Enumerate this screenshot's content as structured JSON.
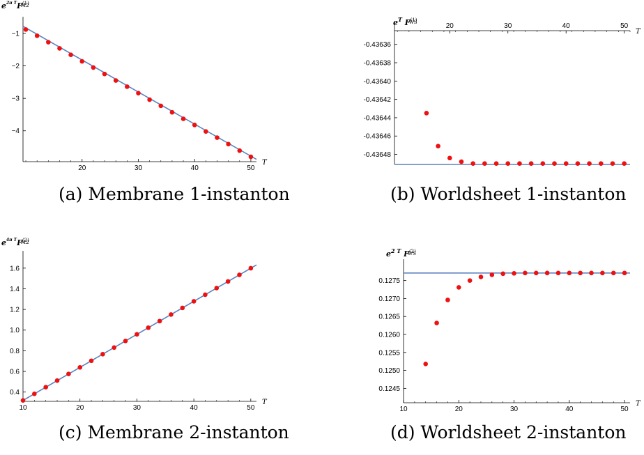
{
  "chart_data": [
    {
      "id": "a",
      "type": "scatter",
      "caption": "(a) Membrane 1-instanton",
      "ylabel": "e^{(2π/g_s)...} F_M2^(1)",
      "xlabel": "T",
      "xlim": [
        9.5,
        51
      ],
      "ylim": [
        -4.95,
        -0.7
      ],
      "x_ticks": [
        20,
        30,
        40,
        50
      ],
      "y_ticks": [
        -1,
        -2,
        -3,
        -4
      ],
      "x_axis_at_y": -4.95,
      "y_axis_at_x": 9.5,
      "points": {
        "x": [
          10,
          12,
          14,
          16,
          18,
          20,
          22,
          24,
          26,
          28,
          30,
          32,
          34,
          36,
          38,
          40,
          42,
          44,
          46,
          48,
          50
        ],
        "y": [
          -0.88,
          -1.07,
          -1.27,
          -1.46,
          -1.66,
          -1.86,
          -2.05,
          -2.25,
          -2.45,
          -2.64,
          -2.84,
          -3.04,
          -3.23,
          -3.43,
          -3.63,
          -3.82,
          -4.02,
          -4.21,
          -4.41,
          -4.61,
          -4.8
        ]
      },
      "fit_line": {
        "x": [
          9.5,
          51
        ],
        "y": [
          -0.78,
          -4.88
        ]
      },
      "colors": {
        "points": "#ee1111",
        "line": "#5b82c0"
      }
    },
    {
      "id": "b",
      "type": "scatter",
      "caption": "(b) Worldsheet 1-instanton",
      "ylabel": "e^T F_WS^(1)",
      "xlabel": "T",
      "xlim": [
        10.5,
        51
      ],
      "ylim": [
        -0.436491,
        -0.436345
      ],
      "x_ticks": [
        20,
        30,
        40,
        50
      ],
      "y_ticks": [
        -0.43636,
        -0.43638,
        -0.4364,
        -0.43642,
        -0.43644,
        -0.43646,
        -0.43648
      ],
      "y_tick_labels": [
        "-0.43636",
        "-0.43638",
        "-0.43640",
        "-0.43642",
        "-0.43644",
        "-0.43646",
        "-0.43648"
      ],
      "x_axis_at_y": -0.436345,
      "x_axis_position": "top",
      "y_axis_at_x": 10.5,
      "points": {
        "x": [
          16,
          18,
          20,
          22,
          24,
          26,
          28,
          30,
          32,
          34,
          36,
          38,
          40,
          42,
          44,
          46,
          48,
          50
        ],
        "y": [
          -0.436435,
          -0.436471,
          -0.436484,
          -0.436488,
          -0.43649,
          -0.43649,
          -0.43649,
          -0.43649,
          -0.43649,
          -0.43649,
          -0.43649,
          -0.43649,
          -0.43649,
          -0.43649,
          -0.43649,
          -0.43649,
          -0.43649,
          -0.43649
        ]
      },
      "fit_line": {
        "x": [
          10.5,
          51
        ],
        "y": [
          -0.436491,
          -0.436491
        ]
      },
      "colors": {
        "points": "#ee1111",
        "line": "#5b82c0"
      }
    },
    {
      "id": "c",
      "type": "scatter",
      "caption": "(c) Membrane 2-instanton",
      "ylabel": "e^{(4πT/g_s)} F_M2^(2)",
      "xlabel": "T",
      "xlim": [
        10,
        51
      ],
      "ylim": [
        0.31,
        1.7
      ],
      "x_ticks": [
        10,
        20,
        30,
        40,
        50
      ],
      "y_ticks": [
        0.4,
        0.6,
        0.8,
        1.0,
        1.2,
        1.4,
        1.6
      ],
      "y_tick_labels": [
        "0.4",
        "0.6",
        "0.8",
        "1.0",
        "1.2",
        "1.4",
        "1.6"
      ],
      "x_axis_at_y": 0.31,
      "y_axis_at_x": 10,
      "points": {
        "x": [
          10,
          12,
          14,
          16,
          18,
          20,
          22,
          24,
          26,
          28,
          30,
          32,
          34,
          36,
          38,
          40,
          42,
          44,
          46,
          48,
          50
        ],
        "y": [
          0.319,
          0.383,
          0.447,
          0.511,
          0.575,
          0.639,
          0.703,
          0.767,
          0.831,
          0.895,
          0.959,
          1.023,
          1.087,
          1.151,
          1.215,
          1.279,
          1.343,
          1.407,
          1.471,
          1.535,
          1.599
        ]
      },
      "fit_line": {
        "x": [
          10,
          51
        ],
        "y": [
          0.319,
          1.631
        ]
      },
      "colors": {
        "points": "#ee1111",
        "line": "#5b82c0"
      }
    },
    {
      "id": "d",
      "type": "scatter",
      "caption": "(d) Worldsheet 2-instanton",
      "ylabel": "e^{2T} F_WS^(2)",
      "xlabel": "T",
      "xlim": [
        10,
        51
      ],
      "ylim": [
        0.1241,
        0.1279
      ],
      "x_ticks": [
        10,
        20,
        30,
        40,
        50
      ],
      "y_ticks": [
        0.1245,
        0.125,
        0.1255,
        0.126,
        0.1265,
        0.127,
        0.1275
      ],
      "y_tick_labels": [
        "0.1245",
        "0.1250",
        "0.1255",
        "0.1260",
        "0.1265",
        "0.1270",
        "0.1275"
      ],
      "x_axis_at_y": 0.1241,
      "y_axis_at_x": 10,
      "points": {
        "x": [
          14,
          16,
          18,
          20,
          22,
          24,
          26,
          28,
          30,
          32,
          34,
          36,
          38,
          40,
          42,
          44,
          46,
          48,
          50
        ],
        "y": [
          0.12518,
          0.12632,
          0.12696,
          0.12731,
          0.1275,
          0.1276,
          0.12766,
          0.12769,
          0.1277,
          0.12771,
          0.12771,
          0.12771,
          0.12771,
          0.12771,
          0.12771,
          0.12771,
          0.12771,
          0.12771,
          0.12771
        ]
      },
      "fit_line": {
        "x": [
          10,
          51
        ],
        "y": [
          0.12771,
          0.12771
        ]
      },
      "colors": {
        "points": "#ee1111",
        "line": "#5b82c0"
      }
    }
  ]
}
